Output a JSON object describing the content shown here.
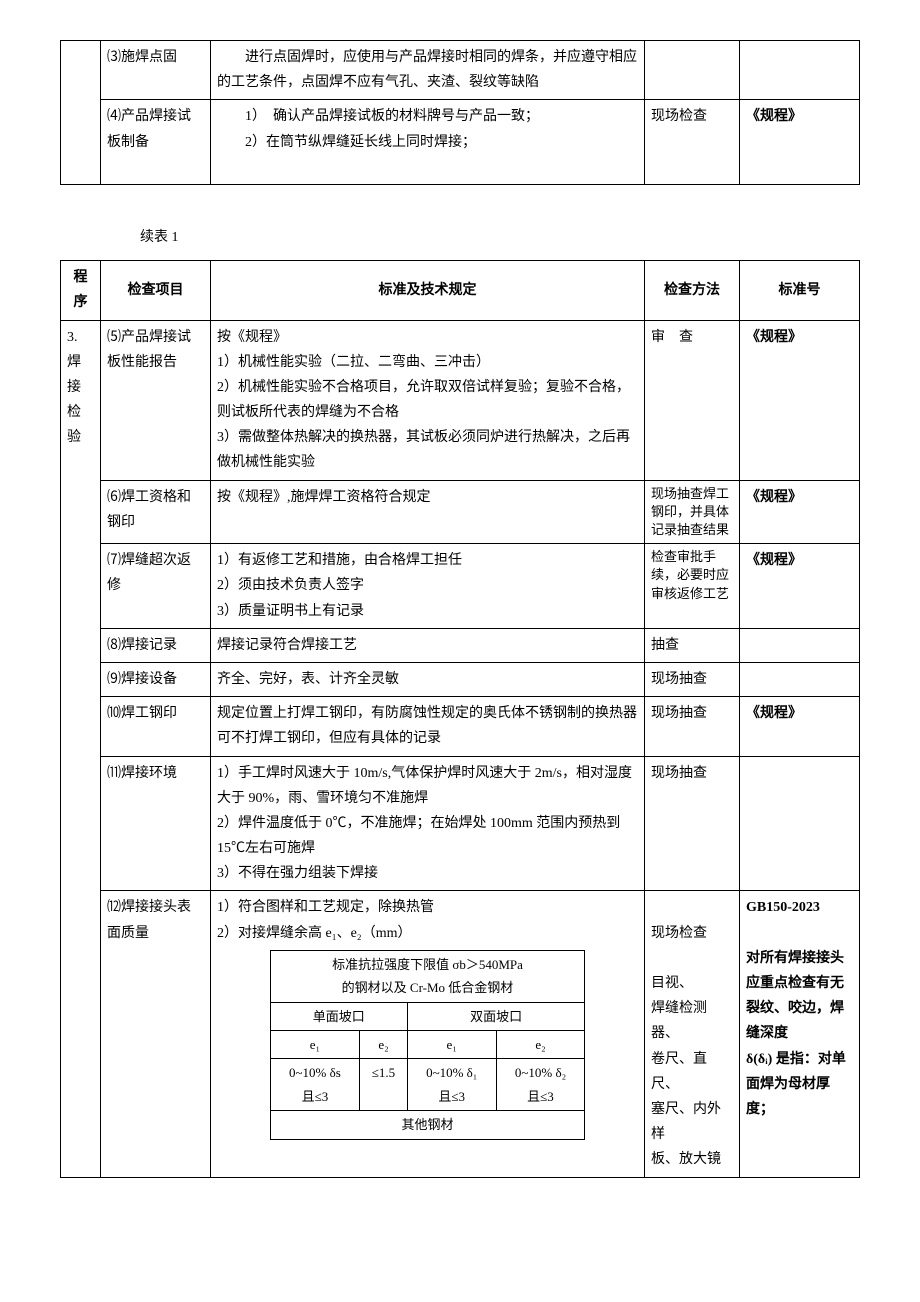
{
  "table1": {
    "rows": [
      {
        "item_no": "⑶",
        "item": "施焊点固",
        "spec": "　　进行点固焊时，应使用与产品焊接时相同的焊条，并应遵守相应的工艺条件，点固焊不应有气孔、夹渣、裂纹等缺陷",
        "method": "",
        "std": ""
      },
      {
        "item_no": "⑷",
        "item": "产品焊接试板制备",
        "spec_lines": [
          "　　1）　确认产品焊接试板的材料牌号与产品一致；",
          "　　2）在筒节纵焊缝延长线上同时焊接；"
        ],
        "method": "现场检查",
        "std": "《规程》",
        "std_bold": true
      }
    ]
  },
  "caption": "续表 1",
  "header": {
    "c1": "程序",
    "c2": "检查项目",
    "c3": "标准及技术规定",
    "c4": "检查方法",
    "c5": "标准号"
  },
  "section_label": "3. 焊 接 检 验",
  "rows2": [
    {
      "item_no": "⑸",
      "item": "产品焊接试板性能报告",
      "spec_lines": [
        "按《规程》",
        "1）机械性能实验（二拉、二弯曲、三冲击）",
        "2）机械性能实验不合格项目，允许取双倍试样复验；复验不合格，则试板所代表的焊缝为不合格",
        "3）需做整体热解决的换热器，其试板必须同炉进行热解决，之后再做机械性能实验"
      ],
      "method": "审　查",
      "std": "《规程》",
      "std_bold": true
    },
    {
      "item_no": "⑹",
      "item": "焊工资格和钢印",
      "spec": "按《规程》,施焊焊工资格符合规定",
      "method": "现场抽查焊工钢印，并具体记录抽查结果",
      "method_small": true,
      "std": "《规程》",
      "std_bold": true
    },
    {
      "item_no": "⑺",
      "item": "焊缝超次返修",
      "spec_lines": [
        "1）有返修工艺和措施，由合格焊工担任",
        "2）须由技术负责人签字",
        "3）质量证明书上有记录"
      ],
      "method": "检查审批手续，必要时应审核返修工艺",
      "method_small": true,
      "std": "《规程》",
      "std_bold": true
    },
    {
      "item_no": "⑻",
      "item": "焊接记录",
      "spec": "焊接记录符合焊接工艺",
      "method": "抽查",
      "std": ""
    },
    {
      "item_no": "⑼",
      "item": "焊接设备",
      "spec": "齐全、完好，表、计齐全灵敏",
      "method": "现场抽查",
      "std": ""
    },
    {
      "item_no": "⑽",
      "item": "焊工钢印",
      "spec": "规定位置上打焊工钢印，有防腐蚀性规定的奥氏体不锈钢制的换热器可不打焊工钢印，但应有具体的记录",
      "method": "现场抽查",
      "std": "《规程》",
      "std_bold": true
    },
    {
      "item_no": "⑾",
      "item": "焊接环境",
      "spec_lines": [
        "1）手工焊时风速大于 10m/s,气体保护焊时风速大于 2m/s，相对湿度大于 90%，雨、雪环境匀不准施焊",
        "2）焊件温度低于 0℃，不准施焊；在始焊处 100mm 范围内预热到 15℃左右可施焊",
        "3）不得在强力组装下焊接"
      ],
      "method": "现场抽查",
      "std": ""
    }
  ],
  "row12": {
    "item_no": "⑿",
    "item": "焊接接头表面质量",
    "spec_lines": [
      "1）符合图样和工艺规定，除换热管",
      "2）对接焊缝余高 e₁、e₂（mm）"
    ],
    "method_lines": [
      "现场检查",
      "",
      "目视、",
      "焊缝检测器、",
      "卷尺、直尺、",
      "塞尺、内外样",
      "板、放大镜"
    ],
    "std_lines": [
      "GB150-2023",
      "",
      "对所有焊接接头应重点检查有无裂纹、咬边，焊缝深度",
      "δ(δᵢ) 是指：对单面焊为母材厚度；"
    ]
  },
  "inner_table": {
    "header1": "标准抗拉强度下限值 σb＞540MPa",
    "header2": "的钢材以及 Cr-Mo 低合金钢材",
    "h_single": "单面坡口",
    "h_double": "双面坡口",
    "c_e1": "e₁",
    "c_e2": "e₂",
    "r1c1": "0~10% δs",
    "r1c1b": "且≤3",
    "r1c2": "≤1.5",
    "r1c3": "0~10% δ₁",
    "r1c3b": "且≤3",
    "r1c4": "0~10% δ₂",
    "r1c4b": "且≤3",
    "footer": "其他钢材"
  }
}
